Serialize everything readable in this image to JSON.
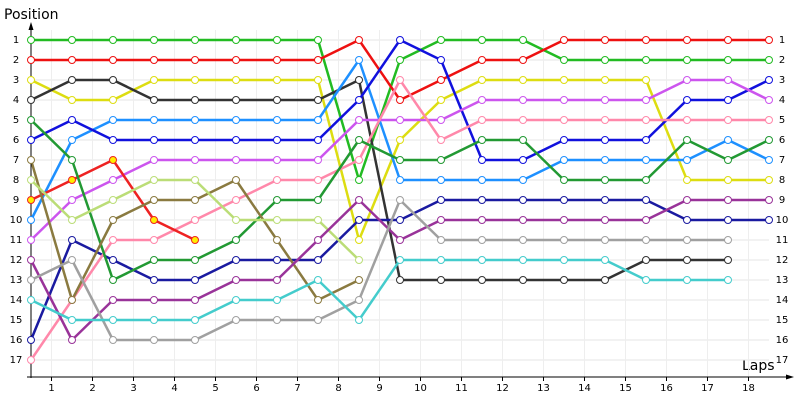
{
  "chart_data": {
    "type": "lap-chart",
    "y_label": "Position",
    "x_label": "Laps",
    "x": [
      0,
      1,
      2,
      3,
      4,
      5,
      6,
      7,
      8,
      9,
      10,
      11,
      12,
      13,
      14,
      15,
      16,
      17,
      18
    ],
    "xlim": [
      0,
      18
    ],
    "xticks": [
      {
        "value": 0.5,
        "label": "1"
      },
      {
        "value": 1.5,
        "label": "2"
      },
      {
        "value": 2.5,
        "label": "3"
      },
      {
        "value": 3.5,
        "label": "4"
      },
      {
        "value": 4.5,
        "label": "5"
      },
      {
        "value": 5.5,
        "label": "6"
      },
      {
        "value": 6.5,
        "label": "7"
      },
      {
        "value": 7.5,
        "label": "8"
      },
      {
        "value": 8.5,
        "label": "9"
      },
      {
        "value": 9.5,
        "label": "10"
      },
      {
        "value": 10.5,
        "label": "11"
      },
      {
        "value": 11.5,
        "label": "12"
      },
      {
        "value": 12.5,
        "label": "13"
      },
      {
        "value": 13.5,
        "label": "14"
      },
      {
        "value": 14.5,
        "label": "15"
      },
      {
        "value": 15.5,
        "label": "16"
      },
      {
        "value": 16.5,
        "label": "17"
      },
      {
        "value": 17.5,
        "label": "18"
      }
    ],
    "ylim": [
      18,
      0
    ],
    "yticks": [
      1,
      2,
      3,
      4,
      5,
      6,
      7,
      8,
      9,
      10,
      11,
      12,
      13,
      14,
      15,
      16,
      17
    ],
    "grid": true,
    "series": [
      {
        "color": "#22bb22",
        "values": [
          1,
          1,
          1,
          1,
          1,
          1,
          1,
          1,
          8,
          2,
          1,
          1,
          1,
          2,
          2,
          2,
          2,
          2,
          2
        ]
      },
      {
        "color": "#ee1111",
        "values": [
          2,
          2,
          2,
          2,
          2,
          2,
          2,
          2,
          1,
          4,
          3,
          2,
          2,
          1,
          1,
          1,
          1,
          1,
          1
        ]
      },
      {
        "color": "#dddd11",
        "values": [
          3,
          4,
          4,
          3,
          3,
          3,
          3,
          3,
          11,
          6,
          4,
          3,
          3,
          3,
          3,
          3,
          8,
          8,
          8
        ]
      },
      {
        "color": "#333333",
        "values": [
          4,
          3,
          3,
          4,
          4,
          4,
          4,
          4,
          3,
          13,
          13,
          13,
          13,
          13,
          13,
          12,
          12,
          12,
          null
        ]
      },
      {
        "color": "#1e90ff",
        "values": [
          10,
          6,
          5,
          5,
          5,
          5,
          5,
          5,
          2,
          8,
          8,
          8,
          8,
          7,
          7,
          7,
          7,
          6,
          7
        ]
      },
      {
        "color": "#1111dd",
        "values": [
          6,
          5,
          6,
          6,
          6,
          6,
          6,
          6,
          4,
          1,
          2,
          7,
          7,
          6,
          6,
          6,
          4,
          4,
          3
        ]
      },
      {
        "color": "#1a1aa0",
        "values": [
          16,
          11,
          12,
          13,
          13,
          12,
          12,
          12,
          10,
          10,
          9,
          9,
          9,
          9,
          9,
          9,
          10,
          10,
          10
        ]
      },
      {
        "color": "#cc55ee",
        "values": [
          11,
          9,
          8,
          7,
          7,
          7,
          7,
          7,
          5,
          5,
          5,
          4,
          4,
          4,
          4,
          4,
          3,
          3,
          4
        ]
      },
      {
        "color": "#ff88aa",
        "values": [
          17,
          14,
          11,
          11,
          10,
          9,
          8,
          8,
          7,
          3,
          6,
          5,
          5,
          5,
          5,
          5,
          5,
          5,
          5
        ]
      },
      {
        "color": "#ee2222",
        "marker_fill": "#ffee00",
        "values": [
          9,
          8,
          7,
          10,
          11,
          null,
          null,
          null,
          null,
          null,
          null,
          null,
          null,
          null,
          null,
          null,
          null,
          null,
          null
        ]
      },
      {
        "color": "#229933",
        "values": [
          5,
          7,
          13,
          12,
          12,
          11,
          9,
          9,
          6,
          7,
          7,
          6,
          6,
          8,
          8,
          8,
          6,
          7,
          6
        ]
      },
      {
        "color": "#8a7a40",
        "values": [
          7,
          14,
          10,
          9,
          9,
          8,
          11,
          14,
          13,
          null,
          null,
          null,
          null,
          null,
          null,
          null,
          null,
          null,
          null
        ]
      },
      {
        "color": "#bbdd77",
        "values": [
          8,
          10,
          9,
          8,
          8,
          10,
          10,
          10,
          12,
          null,
          null,
          null,
          null,
          null,
          null,
          null,
          null,
          null,
          null
        ]
      },
      {
        "color": "#993399",
        "values": [
          12,
          16,
          14,
          14,
          14,
          13,
          13,
          11,
          9,
          11,
          10,
          10,
          10,
          10,
          10,
          10,
          9,
          9,
          9
        ]
      },
      {
        "color": "#a0a0a0",
        "values": [
          13,
          12,
          16,
          16,
          16,
          15,
          15,
          15,
          14,
          9,
          11,
          11,
          11,
          11,
          11,
          11,
          11,
          11,
          null
        ]
      },
      {
        "color": "#44cccc",
        "values": [
          14,
          15,
          15,
          15,
          15,
          14,
          14,
          13,
          15,
          12,
          12,
          12,
          12,
          12,
          12,
          13,
          13,
          13,
          null
        ]
      }
    ]
  }
}
